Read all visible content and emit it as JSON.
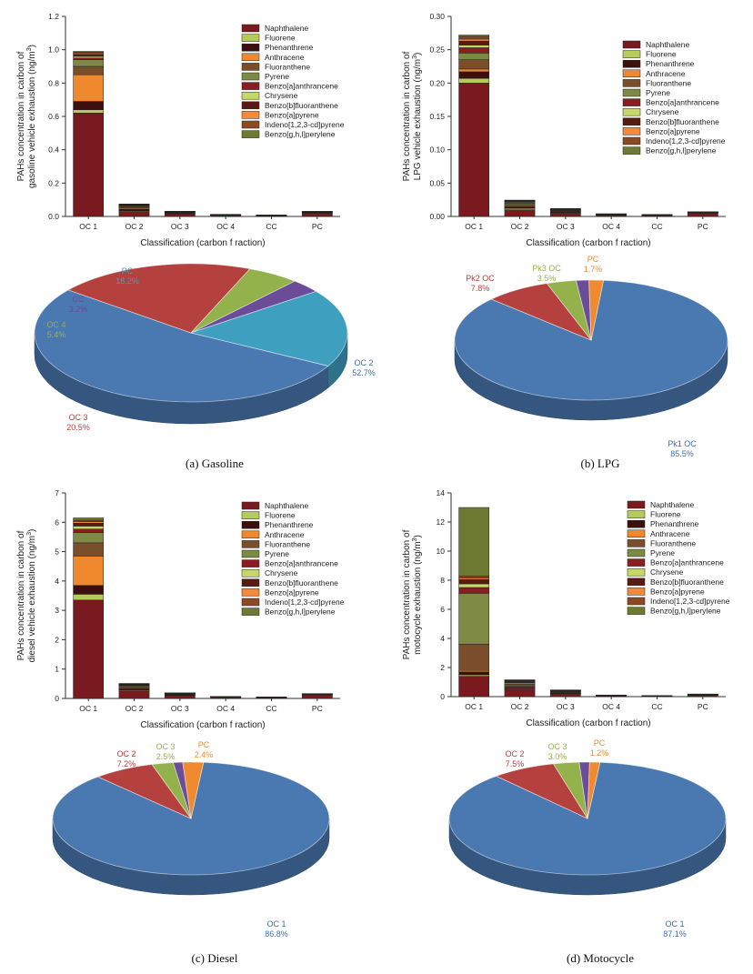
{
  "panels": [
    {
      "id": "gasoline",
      "caption": "(a) Gasoline",
      "bar": {
        "type": "bar",
        "stacked": true,
        "ylabel_lines": [
          "PAHs concentration in carbon of",
          "gasoline vehicle exhaustion (ng/m",
          "3",
          ")"
        ],
        "xlabel": "Classification (carbon f raction)",
        "categories": [
          "OC 1",
          "OC 2",
          "OC 3",
          "OC 4",
          "CC",
          "PC"
        ],
        "ylim": [
          0,
          1.2
        ],
        "yticks": [
          "0.0",
          "0.2",
          "0.4",
          "0.6",
          "0.8",
          "1.0",
          "1.2"
        ],
        "ytick_values": [
          0,
          0.2,
          0.4,
          0.6,
          0.8,
          1.0,
          1.2
        ],
        "legend": [
          "Naphthalene",
          "Fluorene",
          "Phenanthrene",
          "Anthracene",
          "Fluoranthene",
          "Pyrene",
          "Benzo[a]anthrancene",
          "Chrysene",
          "Benzo[b]fluoranthene",
          "Benzo[a]pyrene",
          "Indeno[1,2,3-cd]pyrene",
          "Benzo[g,h,l]perylene"
        ],
        "series": [
          {
            "name": "Naphthalene",
            "values": [
              0.62,
              0.03,
              0.015,
              0.006,
              0.004,
              0.02
            ]
          },
          {
            "name": "Fluorene",
            "values": [
              0.02,
              0.004,
              0.002,
              0.001,
              0.0005,
              0.002
            ]
          },
          {
            "name": "Phenanthrene",
            "values": [
              0.05,
              0.01,
              0.004,
              0.002,
              0.001,
              0.003
            ]
          },
          {
            "name": "Anthracene",
            "values": [
              0.16,
              0.006,
              0.002,
              0.0005,
              0.0005,
              0.001
            ]
          },
          {
            "name": "Fluoranthene",
            "values": [
              0.05,
              0.008,
              0.002,
              0.0005,
              0.0005,
              0.001
            ]
          },
          {
            "name": "Pyrene",
            "values": [
              0.04,
              0.005,
              0.002,
              0.0005,
              0.0005,
              0.001
            ]
          },
          {
            "name": "Benzo[a]anthrancene",
            "values": [
              0.01,
              0.003,
              0.001,
              0.0005,
              0.0005,
              0.0005
            ]
          },
          {
            "name": "Chrysene",
            "values": [
              0.01,
              0.002,
              0.001,
              0.0005,
              0.0005,
              0.0005
            ]
          },
          {
            "name": "Benzo[b]fluoranthene",
            "values": [
              0.01,
              0.002,
              0.001,
              0.0005,
              0.0005,
              0.0005
            ]
          },
          {
            "name": "Benzo[a]pyrene",
            "values": [
              0.005,
              0.001,
              0.0005,
              0.0002,
              0.0002,
              0.0002
            ]
          },
          {
            "name": "Indeno[1,2,3-cd]pyrene",
            "values": [
              0.01,
              0.002,
              0.0005,
              0.0002,
              0.0002,
              0.0002
            ]
          },
          {
            "name": "Benzo[g,h,l]perylene",
            "values": [
              0.005,
              0.002,
              0.0005,
              0.0002,
              0.0002,
              0.0002
            ]
          }
        ]
      },
      "pie": {
        "type": "pie",
        "slices": [
          {
            "label": "OC 2",
            "pct_text": "52.7%",
            "value": 52.7,
            "color": "#4a78b0"
          },
          {
            "label": "OC 3",
            "pct_text": "20.5%",
            "value": 20.5,
            "color": "#b5413f"
          },
          {
            "label": "OC 4",
            "pct_text": "5.4%",
            "value": 5.4,
            "color": "#93b24c"
          },
          {
            "label": "CC",
            "pct_text": "3.2%",
            "value": 3.2,
            "color": "#6b4c98"
          },
          {
            "label": "PC",
            "pct_text": "18.2%",
            "value": 18.2,
            "color": "#3e9fbf"
          }
        ]
      }
    },
    {
      "id": "lpg",
      "caption": "(b) LPG",
      "bar": {
        "type": "bar",
        "stacked": true,
        "ylabel_lines": [
          "PAHs concentration in carbon of",
          "LPG vehicle exhaustion (ng/m",
          "3",
          ")"
        ],
        "xlabel": "Classification (carbon f raction)",
        "categories": [
          "OC 1",
          "OC 2",
          "OC 3",
          "OC 4",
          "CC",
          "PC"
        ],
        "ylim": [
          0,
          0.3
        ],
        "yticks": [
          "0.00",
          "0.05",
          "0.10",
          "0.15",
          "0.20",
          "0.25",
          "0.30"
        ],
        "ytick_values": [
          0,
          0.05,
          0.1,
          0.15,
          0.2,
          0.25,
          0.3
        ],
        "legend": [
          "Naphthalene",
          "Fluorene",
          "Phenanthrene",
          "Anthracene",
          "Fluoranthene",
          "Pyrene",
          "Benzo[a]anthrancene",
          "Chrysene",
          "Benzo[b]fluoranthene",
          "Benzo[a]pyrene",
          "Indeno[1,2,3-cd]pyrene",
          "Benzo[g,h,l]perylene"
        ],
        "series": [
          {
            "name": "Naphthalene",
            "values": [
              0.2,
              0.01,
              0.005,
              0.002,
              0.0015,
              0.005
            ]
          },
          {
            "name": "Fluorene",
            "values": [
              0.007,
              0.002,
              0.001,
              0.0003,
              0.0002,
              0.0003
            ]
          },
          {
            "name": "Phenanthrene",
            "values": [
              0.01,
              0.002,
              0.001,
              0.0003,
              0.0002,
              0.0003
            ]
          },
          {
            "name": "Anthracene",
            "values": [
              0.004,
              0.001,
              0.0005,
              0.0002,
              0.0001,
              0.0002
            ]
          },
          {
            "name": "Fluoranthene",
            "values": [
              0.014,
              0.003,
              0.001,
              0.0003,
              0.0002,
              0.0003
            ]
          },
          {
            "name": "Pyrene",
            "values": [
              0.01,
              0.002,
              0.001,
              0.0002,
              0.0001,
              0.0002
            ]
          },
          {
            "name": "Benzo[a]anthrancene",
            "values": [
              0.008,
              0.001,
              0.0005,
              0.0002,
              0.0001,
              0.0002
            ]
          },
          {
            "name": "Chrysene",
            "values": [
              0.004,
              0.001,
              0.0005,
              0.0001,
              0.0001,
              0.0001
            ]
          },
          {
            "name": "Benzo[b]fluoranthene",
            "values": [
              0.006,
              0.001,
              0.0005,
              0.0001,
              0.0001,
              0.0001
            ]
          },
          {
            "name": "Benzo[a]pyrene",
            "values": [
              0.003,
              0.0005,
              0.0003,
              0.0001,
              0.0001,
              0.0001
            ]
          },
          {
            "name": "Indeno[1,2,3-cd]pyrene",
            "values": [
              0.004,
              0.0005,
              0.0003,
              0.0001,
              0.0001,
              0.0001
            ]
          },
          {
            "name": "Benzo[g,h,l]perylene",
            "values": [
              0.002,
              0.0005,
              0.0003,
              0.0001,
              0.0001,
              0.0001
            ]
          }
        ]
      },
      "pie": {
        "type": "pie",
        "slices": [
          {
            "label": "Pk1 OC",
            "pct_text": "85.5%",
            "value": 85.5,
            "color": "#4a78b0"
          },
          {
            "label": "Pk2 OC",
            "pct_text": "7.8%",
            "value": 7.8,
            "color": "#b5413f"
          },
          {
            "label": "Pk3 OC",
            "pct_text": "3.5%",
            "value": 3.5,
            "color": "#93b24c"
          },
          {
            "label": "",
            "pct_text": "",
            "value": 1.5,
            "color": "#6b4c98"
          },
          {
            "label": "PC",
            "pct_text": "1.7%",
            "value": 1.7,
            "color": "#ef8a2e"
          }
        ]
      }
    },
    {
      "id": "diesel",
      "caption": "(c) Diesel",
      "bar": {
        "type": "bar",
        "stacked": true,
        "ylabel_lines": [
          "PAHs concentration in carbon of",
          "diesel vehicle exhaustion (ng/m",
          "3",
          ")"
        ],
        "xlabel": "Classification (carbon f raction)",
        "categories": [
          "OC 1",
          "OC 2",
          "OC 3",
          "OC 4",
          "CC",
          "PC"
        ],
        "ylim": [
          0,
          7
        ],
        "yticks": [
          "0",
          "1",
          "2",
          "3",
          "4",
          "5",
          "6",
          "7"
        ],
        "ytick_values": [
          0,
          1,
          2,
          3,
          4,
          5,
          6,
          7
        ],
        "legend": [
          "Naphthalene",
          "Fluorene",
          "Phenanthrene",
          "Anthracene",
          "Fluoranthene",
          "Pyrene",
          "Benzo[a]anthrancene",
          "Chrysene",
          "Benzo[b]fluoranthene",
          "Benzo[a]pyrene",
          "Indeno[1,2,3-cd]pyrene",
          "Benzo[g,h,l]perylene"
        ],
        "series": [
          {
            "name": "Naphthalene",
            "values": [
              3.35,
              0.25,
              0.1,
              0.04,
              0.03,
              0.12
            ]
          },
          {
            "name": "Fluorene",
            "values": [
              0.2,
              0.03,
              0.01,
              0.003,
              0.002,
              0.005
            ]
          },
          {
            "name": "Phenanthrene",
            "values": [
              0.3,
              0.05,
              0.02,
              0.005,
              0.003,
              0.01
            ]
          },
          {
            "name": "Anthracene",
            "values": [
              1.0,
              0.03,
              0.01,
              0.003,
              0.002,
              0.005
            ]
          },
          {
            "name": "Fluoranthene",
            "values": [
              0.45,
              0.04,
              0.015,
              0.003,
              0.002,
              0.005
            ]
          },
          {
            "name": "Pyrene",
            "values": [
              0.35,
              0.03,
              0.01,
              0.003,
              0.002,
              0.005
            ]
          },
          {
            "name": "Benzo[a]anthrancene",
            "values": [
              0.12,
              0.02,
              0.005,
              0.002,
              0.001,
              0.003
            ]
          },
          {
            "name": "Chrysene",
            "values": [
              0.1,
              0.015,
              0.005,
              0.002,
              0.001,
              0.003
            ]
          },
          {
            "name": "Benzo[b]fluoranthene",
            "values": [
              0.1,
              0.015,
              0.005,
              0.002,
              0.001,
              0.003
            ]
          },
          {
            "name": "Benzo[a]pyrene",
            "values": [
              0.05,
              0.01,
              0.003,
              0.001,
              0.001,
              0.002
            ]
          },
          {
            "name": "Indeno[1,2,3-cd]pyrene",
            "values": [
              0.05,
              0.01,
              0.003,
              0.001,
              0.001,
              0.002
            ]
          },
          {
            "name": "Benzo[g,h,l]perylene",
            "values": [
              0.08,
              0.01,
              0.003,
              0.001,
              0.001,
              0.002
            ]
          }
        ]
      },
      "pie": {
        "type": "pie",
        "slices": [
          {
            "label": "OC 1",
            "pct_text": "86.8%",
            "value": 86.8,
            "color": "#4a78b0"
          },
          {
            "label": "OC 2",
            "pct_text": "7.2%",
            "value": 7.2,
            "color": "#b5413f"
          },
          {
            "label": "OC 3",
            "pct_text": "2.5%",
            "value": 2.5,
            "color": "#93b24c"
          },
          {
            "label": "",
            "pct_text": "",
            "value": 1.1,
            "color": "#6b4c98"
          },
          {
            "label": "PC",
            "pct_text": "2.4%",
            "value": 2.4,
            "color": "#ef8a2e"
          }
        ]
      }
    },
    {
      "id": "motocycle",
      "caption": "(d) Motocycle",
      "bar": {
        "type": "bar",
        "stacked": true,
        "ylabel_lines": [
          "PAHs concentration in carbon of",
          "motocycle exhaustion (ng/m",
          "3",
          ")"
        ],
        "xlabel": "Classification (carbon f raction)",
        "categories": [
          "OC 1",
          "OC 2",
          "OC 3",
          "OC 4",
          "CC",
          "PC"
        ],
        "ylim": [
          0,
          14
        ],
        "yticks": [
          "0",
          "2",
          "4",
          "6",
          "8",
          "10",
          "12",
          "14"
        ],
        "ytick_values": [
          0,
          2,
          4,
          6,
          8,
          10,
          12,
          14
        ],
        "legend": [
          "Naphthalene",
          "Fluorene",
          "Phenanthrene",
          "Anthracene",
          "Fluoranthene",
          "Pyrene",
          "Benzo[a]anthrancene",
          "Chrysene",
          "Benzo[b]fluoranthene",
          "Benzo[a]pyrene",
          "Indeno[1,2,3-cd]pyrene",
          "Benzo[g,h,l]perylene"
        ],
        "series": [
          {
            "name": "Naphthalene",
            "values": [
              1.4,
              0.5,
              0.2,
              0.05,
              0.04,
              0.1
            ]
          },
          {
            "name": "Fluorene",
            "values": [
              0.1,
              0.05,
              0.02,
              0.005,
              0.004,
              0.01
            ]
          },
          {
            "name": "Phenanthrene",
            "values": [
              0.2,
              0.1,
              0.04,
              0.01,
              0.005,
              0.02
            ]
          },
          {
            "name": "Anthracene",
            "values": [
              0.1,
              0.05,
              0.02,
              0.005,
              0.003,
              0.005
            ]
          },
          {
            "name": "Fluoranthene",
            "values": [
              1.8,
              0.15,
              0.05,
              0.01,
              0.005,
              0.01
            ]
          },
          {
            "name": "Pyrene",
            "values": [
              3.5,
              0.1,
              0.04,
              0.01,
              0.005,
              0.01
            ]
          },
          {
            "name": "Benzo[a]anthrancene",
            "values": [
              0.4,
              0.05,
              0.02,
              0.005,
              0.003,
              0.005
            ]
          },
          {
            "name": "Chrysene",
            "values": [
              0.25,
              0.04,
              0.02,
              0.005,
              0.003,
              0.005
            ]
          },
          {
            "name": "Benzo[b]fluoranthene",
            "values": [
              0.3,
              0.03,
              0.01,
              0.003,
              0.002,
              0.003
            ]
          },
          {
            "name": "Benzo[a]pyrene",
            "values": [
              0.1,
              0.02,
              0.01,
              0.002,
              0.002,
              0.003
            ]
          },
          {
            "name": "Indeno[1,2,3-cd]pyrene",
            "values": [
              0.15,
              0.02,
              0.01,
              0.002,
              0.002,
              0.003
            ]
          },
          {
            "name": "Benzo[g,h,l]perylene",
            "values": [
              4.7,
              0.05,
              0.02,
              0.005,
              0.003,
              0.005
            ]
          }
        ]
      },
      "pie": {
        "type": "pie",
        "slices": [
          {
            "label": "OC 1",
            "pct_text": "87.1%",
            "value": 87.1,
            "color": "#4a78b0"
          },
          {
            "label": "OC 2",
            "pct_text": "7.5%",
            "value": 7.5,
            "color": "#b5413f"
          },
          {
            "label": "OC 3",
            "pct_text": "3.0%",
            "value": 3.0,
            "color": "#93b24c"
          },
          {
            "label": "",
            "pct_text": "",
            "value": 1.2,
            "color": "#6b4c98"
          },
          {
            "label": "PC",
            "pct_text": "1.2%",
            "value": 1.2,
            "color": "#ef8a2e"
          }
        ]
      }
    }
  ],
  "series_colors": [
    "#7b1a1e",
    "#b5cc5a",
    "#3e0f0f",
    "#f0892e",
    "#7a4e2a",
    "#7e8a44",
    "#8a1c22",
    "#c7d66a",
    "#5a1a14",
    "#f28a3a",
    "#8c4a24",
    "#6e7a32"
  ]
}
